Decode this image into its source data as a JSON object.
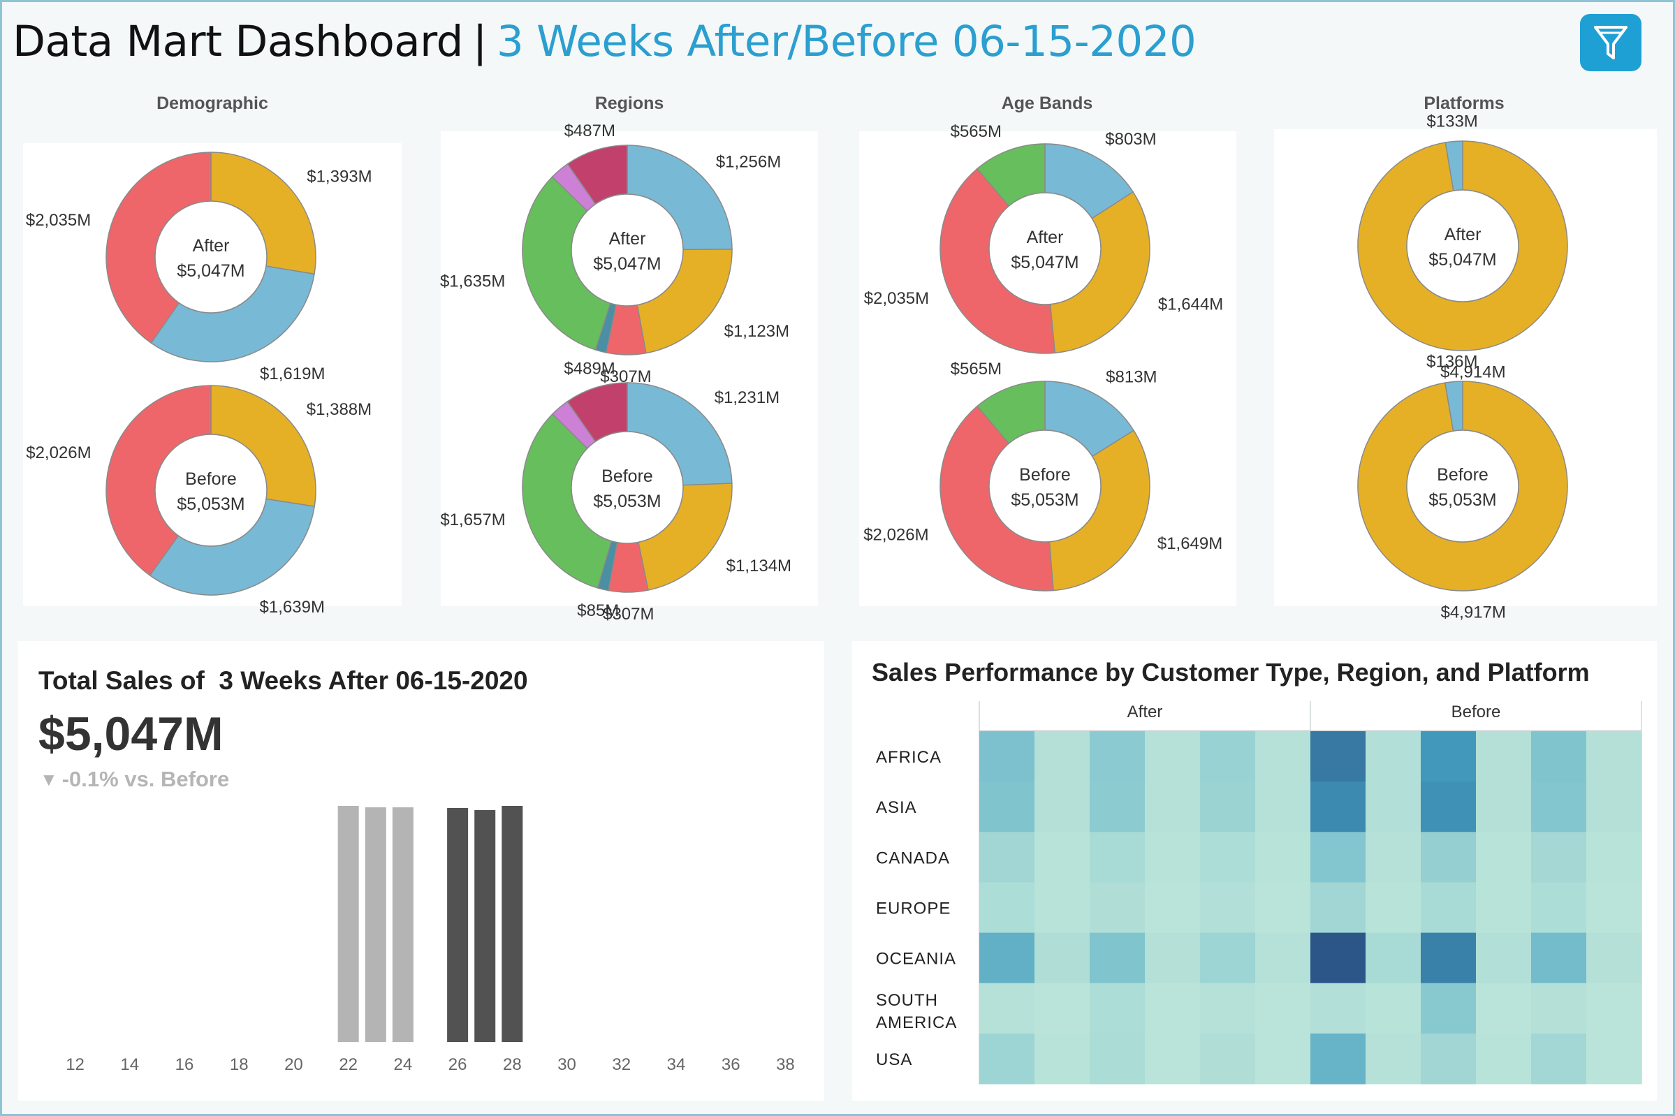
{
  "header": {
    "title": "Data Mart Dashboard",
    "separator": "|",
    "subtitle": "3 Weeks After/Before 06-15-2020",
    "filter_icon": "funnel-icon"
  },
  "colors": {
    "accent": "#2b9fcf",
    "yellow": "#e6b026",
    "blue": "#78b9d6",
    "red": "#ee666a",
    "green": "#66bf5c",
    "purple": "#cc80d6",
    "maroon": "#c1416c",
    "teal": "#4a8fa3",
    "bar_before": "#b4b4b4",
    "bar_after": "#525252"
  },
  "chart_data": [
    {
      "type": "pie",
      "id": "demographic",
      "title": "Demographic",
      "donuts": [
        {
          "label": "After",
          "total": "$5,047M",
          "slices": [
            {
              "value": 1393,
              "label": "$1,393M",
              "color": "#e6b026"
            },
            {
              "value": 1619,
              "label": "$1,619M",
              "color": "#78b9d6"
            },
            {
              "value": 2035,
              "label": "$2,035M",
              "color": "#ee666a"
            }
          ]
        },
        {
          "label": "Before",
          "total": "$5,053M",
          "slices": [
            {
              "value": 1388,
              "label": "$1,388M",
              "color": "#e6b026"
            },
            {
              "value": 1639,
              "label": "$1,639M",
              "color": "#78b9d6"
            },
            {
              "value": 2026,
              "label": "$2,026M",
              "color": "#ee666a"
            }
          ]
        }
      ]
    },
    {
      "type": "pie",
      "id": "regions",
      "title": "Regions",
      "donuts": [
        {
          "label": "After",
          "total": "$5,047M",
          "slices": [
            {
              "value": 1256,
              "label": "$1,256M",
              "color": "#78b9d6"
            },
            {
              "value": 1123,
              "label": "$1,123M",
              "color": "#e6b026"
            },
            {
              "value": 307,
              "label": "$307M",
              "color": "#ee666a"
            },
            {
              "value": 85,
              "label": "",
              "color": "#4a8fa3"
            },
            {
              "value": 1635,
              "label": "$1,635M",
              "color": "#66bf5c"
            },
            {
              "value": 154,
              "label": "",
              "color": "#cc80d6"
            },
            {
              "value": 487,
              "label": "$487M",
              "color": "#c1416c"
            }
          ]
        },
        {
          "label": "Before",
          "total": "$5,053M",
          "slices": [
            {
              "value": 1231,
              "label": "$1,231M",
              "color": "#78b9d6"
            },
            {
              "value": 1134,
              "label": "$1,134M",
              "color": "#e6b026"
            },
            {
              "value": 307,
              "label": "$307M",
              "color": "#ee666a"
            },
            {
              "value": 85,
              "label": "$85M",
              "color": "#4a8fa3"
            },
            {
              "value": 1657,
              "label": "$1,657M",
              "color": "#66bf5c"
            },
            {
              "value": 150,
              "label": "",
              "color": "#cc80d6"
            },
            {
              "value": 489,
              "label": "$489M",
              "color": "#c1416c"
            }
          ]
        }
      ]
    },
    {
      "type": "pie",
      "id": "age-bands",
      "title": "Age Bands",
      "donuts": [
        {
          "label": "After",
          "total": "$5,047M",
          "slices": [
            {
              "value": 803,
              "label": "$803M",
              "color": "#78b9d6"
            },
            {
              "value": 1644,
              "label": "$1,644M",
              "color": "#e6b026"
            },
            {
              "value": 2035,
              "label": "$2,035M",
              "color": "#ee666a"
            },
            {
              "value": 565,
              "label": "$565M",
              "color": "#66bf5c"
            }
          ]
        },
        {
          "label": "Before",
          "total": "$5,053M",
          "slices": [
            {
              "value": 813,
              "label": "$813M",
              "color": "#78b9d6"
            },
            {
              "value": 1649,
              "label": "$1,649M",
              "color": "#e6b026"
            },
            {
              "value": 2026,
              "label": "$2,026M",
              "color": "#ee666a"
            },
            {
              "value": 565,
              "label": "$565M",
              "color": "#66bf5c"
            }
          ]
        }
      ]
    },
    {
      "type": "pie",
      "id": "platforms",
      "title": "Platforms",
      "donuts": [
        {
          "label": "After",
          "total": "$5,047M",
          "slices": [
            {
              "value": 4914,
              "label": "$4,914M",
              "color": "#e6b026"
            },
            {
              "value": 133,
              "label": "$133M",
              "color": "#78b9d6"
            }
          ]
        },
        {
          "label": "Before",
          "total": "$5,053M",
          "slices": [
            {
              "value": 4917,
              "label": "$4,917M",
              "color": "#e6b026"
            },
            {
              "value": 136,
              "label": "$136M",
              "color": "#78b9d6"
            }
          ]
        }
      ]
    },
    {
      "type": "bar",
      "id": "weekly-sales",
      "title": "Total Sales of  3 Weeks After 06-15-2020",
      "kpi_value": "$5,047M",
      "kpi_delta": "-0.1% vs. Before",
      "x_ticks": [
        "12",
        "14",
        "16",
        "18",
        "20",
        "22",
        "24",
        "26",
        "28",
        "30",
        "32",
        "34",
        "36",
        "38"
      ],
      "xlim": [
        11.5,
        38.5
      ],
      "ylim": [
        0,
        1700
      ],
      "series": [
        {
          "group": "before",
          "x": [
            22,
            23,
            24
          ],
          "values": [
            1690,
            1680,
            1680
          ],
          "color": "#b4b4b4"
        },
        {
          "group": "after",
          "x": [
            26,
            27,
            28
          ],
          "values": [
            1675,
            1660,
            1690
          ],
          "color": "#525252"
        }
      ]
    },
    {
      "type": "heatmap",
      "id": "sales-performance",
      "title": "Sales Performance by Customer Type, Region, and Platform",
      "column_groups": [
        "After",
        "Before"
      ],
      "columns_per_group": 6,
      "rows": [
        "AFRICA",
        "ASIA",
        "CANADA",
        "EUROPE",
        "OCEANIA",
        "SOUTH AMERICA",
        "USA"
      ],
      "values": [
        [
          0.32,
          0.05,
          0.25,
          0.04,
          0.18,
          0.04,
          0.8,
          0.06,
          0.62,
          0.05,
          0.3,
          0.05
        ],
        [
          0.3,
          0.05,
          0.24,
          0.04,
          0.17,
          0.04,
          0.7,
          0.06,
          0.66,
          0.05,
          0.28,
          0.05
        ],
        [
          0.14,
          0.03,
          0.1,
          0.03,
          0.08,
          0.03,
          0.28,
          0.04,
          0.2,
          0.03,
          0.12,
          0.03
        ],
        [
          0.08,
          0.03,
          0.07,
          0.02,
          0.06,
          0.02,
          0.14,
          0.03,
          0.1,
          0.03,
          0.08,
          0.02
        ],
        [
          0.45,
          0.07,
          0.3,
          0.05,
          0.16,
          0.04,
          1.0,
          0.1,
          0.75,
          0.06,
          0.36,
          0.05
        ],
        [
          0.04,
          0.02,
          0.08,
          0.02,
          0.04,
          0.02,
          0.06,
          0.03,
          0.26,
          0.02,
          0.05,
          0.02
        ],
        [
          0.16,
          0.03,
          0.09,
          0.02,
          0.07,
          0.02,
          0.42,
          0.04,
          0.14,
          0.03,
          0.13,
          0.02
        ]
      ]
    }
  ]
}
